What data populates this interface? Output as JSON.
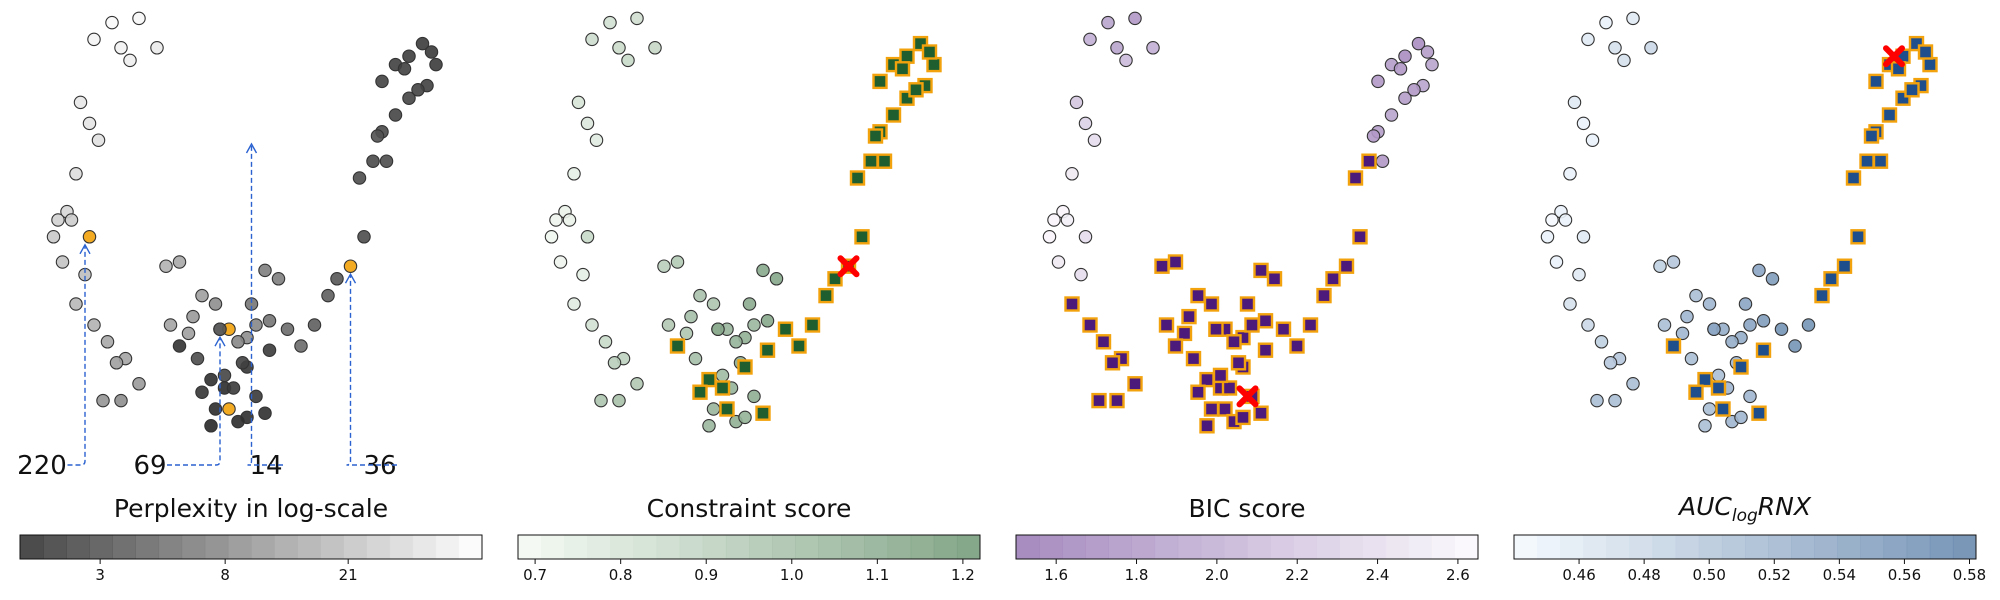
{
  "chart_data": [
    {
      "type": "scatter",
      "title": "Perplexity in log-scale",
      "colorscale": "Greys (dark = low, light = high)",
      "colorbar": {
        "min": 1.6,
        "max": 60,
        "scale": "log",
        "ticks": [
          3,
          8,
          21
        ],
        "tick_labels": [
          "3",
          "8",
          "21"
        ]
      },
      "highlight_color": "#f2a20c",
      "annotations": [
        {
          "label": "220",
          "target": {
            "x": 1.4,
            "y": 4.6
          }
        },
        {
          "label": "69",
          "target": {
            "x": 4.4,
            "y": 2.4
          }
        },
        {
          "label": "14",
          "target": {
            "x": 5.1,
            "y": 7.0
          }
        },
        {
          "label": "36",
          "target": {
            "x": 7.3,
            "y": 3.9
          }
        }
      ],
      "x": [
        2.0,
        2.6,
        1.6,
        2.2,
        2.4,
        3.0,
        1.3,
        1.5,
        1.7,
        1.2,
        1.0,
        0.8,
        1.1,
        0.7,
        0.9,
        1.4,
        1.2,
        1.6,
        1.9,
        2.3,
        2.1,
        2.6,
        1.8,
        2.2,
        1.5,
        3.2,
        3.5,
        4.0,
        4.4,
        3.8,
        4.3,
        3.3,
        3.7,
        4.6,
        5.0,
        4.8,
        5.2,
        5.4,
        5.7,
        5.1,
        5.5,
        5.9,
        6.2,
        6.5,
        6.8,
        7.0,
        7.3,
        7.6,
        7.5,
        7.8,
        8.0,
        8.3,
        8.0,
        8.3,
        8.6,
        8.9,
        8.5,
        8.1,
        7.9,
        8.6,
        9.0,
        9.2,
        9.1,
        8.8,
        3.5,
        4.2,
        4.5,
        4.6,
        5.0,
        5.5,
        5.4,
        4.0,
        4.2,
        4.3,
        4.8,
        5.0,
        5.2,
        4.9,
        4.7,
        4.5,
        4.4,
        3.9
      ],
      "y": [
        9.7,
        9.8,
        9.3,
        9.1,
        8.8,
        9.1,
        7.8,
        7.3,
        6.9,
        6.1,
        5.2,
        5.0,
        5.0,
        4.6,
        4.0,
        3.7,
        3.0,
        2.5,
        2.1,
        1.7,
        1.6,
        1.1,
        0.7,
        0.7,
        4.6,
        3.9,
        4.0,
        3.2,
        2.4,
        2.7,
        3.0,
        2.5,
        2.3,
        2.4,
        2.2,
        2.1,
        2.5,
        3.8,
        3.6,
        3.0,
        2.6,
        2.4,
        2.0,
        2.5,
        3.2,
        3.6,
        3.9,
        4.6,
        6.0,
        6.4,
        7.1,
        7.5,
        8.3,
        8.7,
        8.9,
        9.2,
        8.6,
        6.4,
        7.0,
        7.9,
        8.2,
        8.7,
        9.0,
        8.1,
        2.0,
        1.2,
        1.0,
        0.5,
        1.5,
        1.9,
        0.4,
        0.9,
        0.1,
        0.5,
        0.2,
        0.3,
        0.8,
        1.6,
        1.0,
        1.3,
        2.4,
        1.7
      ],
      "colorbar_values": [
        55,
        52,
        50,
        48,
        45,
        42,
        40,
        38,
        36,
        34,
        30,
        28,
        26,
        24,
        22,
        20,
        18,
        16,
        14,
        13,
        12,
        11,
        10,
        9,
        18,
        16,
        14,
        12,
        10,
        11,
        9,
        13,
        12,
        10,
        9,
        8,
        8,
        7,
        7,
        6,
        6,
        5,
        5,
        4,
        4,
        3.5,
        3.5,
        3,
        3,
        2.8,
        2.8,
        2.6,
        2.5,
        2.4,
        2.3,
        2.2,
        2.4,
        3,
        3.2,
        2.6,
        2.4,
        2.2,
        2.1,
        2.5,
        1.9,
        1.8,
        1.7,
        1.7,
        2.0,
        2.2,
        1.8,
        2.0,
        1.6,
        1.7,
        1.7,
        1.8,
        2.1,
        2.4,
        2.2,
        2.6,
        3.5,
        2.9
      ],
      "highlighted_indices": [
        24,
        33,
        46,
        67
      ]
    },
    {
      "type": "scatter",
      "title": "Constraint score",
      "colorscale": "Greens (light = low, dark = high)",
      "colorbar": {
        "min": 0.68,
        "max": 1.22,
        "ticks": [
          0.7,
          0.8,
          0.9,
          1.0,
          1.1,
          1.2
        ],
        "tick_labels": [
          "0.7",
          "0.8",
          "0.9",
          "1.0",
          "1.1",
          "1.2"
        ]
      },
      "selected_marker": "square",
      "selected_fill": "#1f5f2f",
      "selected_edge": "#f2a20c",
      "best_marker": "X",
      "best_color": "#ff0000",
      "best_point": {
        "x": 7.3,
        "y": 3.9
      },
      "x": [
        2.0,
        2.6,
        1.6,
        2.2,
        2.4,
        3.0,
        1.3,
        1.5,
        1.7,
        1.2,
        1.0,
        0.8,
        1.1,
        0.7,
        0.9,
        1.4,
        1.2,
        1.6,
        1.9,
        2.3,
        2.1,
        2.6,
        1.8,
        2.2,
        1.5,
        3.2,
        3.5,
        4.0,
        4.4,
        3.8,
        4.3,
        3.3,
        3.7,
        4.6,
        5.0,
        4.8,
        5.2,
        5.4,
        5.7,
        5.1,
        5.5,
        5.9,
        6.2,
        6.5,
        6.8,
        7.0,
        7.3,
        7.6,
        7.5,
        7.8,
        8.0,
        8.3,
        8.0,
        8.3,
        8.6,
        8.9,
        8.5,
        8.1,
        7.9,
        8.6,
        9.0,
        9.2,
        9.1,
        8.8,
        3.5,
        4.2,
        4.5,
        4.6,
        5.0,
        5.5,
        5.4,
        4.0,
        4.2,
        4.3,
        4.8,
        5.0,
        5.2,
        4.9,
        4.7,
        4.5,
        4.4,
        3.9
      ],
      "y": [
        9.7,
        9.8,
        9.3,
        9.1,
        8.8,
        9.1,
        7.8,
        7.3,
        6.9,
        6.1,
        5.2,
        5.0,
        5.0,
        4.6,
        4.0,
        3.7,
        3.0,
        2.5,
        2.1,
        1.7,
        1.6,
        1.1,
        0.7,
        0.7,
        4.6,
        3.9,
        4.0,
        3.2,
        2.4,
        2.7,
        3.0,
        2.5,
        2.3,
        2.4,
        2.2,
        2.1,
        2.5,
        3.8,
        3.6,
        3.0,
        2.6,
        2.4,
        2.0,
        2.5,
        3.2,
        3.6,
        3.9,
        4.6,
        6.0,
        6.4,
        7.1,
        7.5,
        8.3,
        8.7,
        8.9,
        9.2,
        8.6,
        6.4,
        7.0,
        7.9,
        8.2,
        8.7,
        9.0,
        8.1,
        2.0,
        1.2,
        1.0,
        0.5,
        1.5,
        1.9,
        0.4,
        0.9,
        0.1,
        0.5,
        0.2,
        0.3,
        0.8,
        1.6,
        1.0,
        1.3,
        2.4,
        1.7
      ],
      "colorbar_values": [
        0.82,
        0.83,
        0.84,
        0.85,
        0.86,
        0.87,
        0.8,
        0.78,
        0.76,
        0.74,
        0.72,
        0.71,
        0.72,
        0.7,
        0.71,
        0.74,
        0.76,
        0.82,
        0.86,
        0.9,
        0.92,
        0.95,
        0.97,
        0.99,
        0.86,
        0.92,
        0.94,
        0.98,
        1.02,
        1.0,
        0.97,
        0.95,
        0.96,
        1.05,
        1.08,
        1.06,
        1.04,
        1.12,
        1.13,
        1.1,
        1.12,
        1.15,
        1.16,
        1.17,
        1.18,
        1.19,
        1.2,
        1.18,
        1.17,
        1.16,
        1.18,
        1.17,
        1.16,
        1.15,
        1.15,
        1.14,
        1.16,
        1.18,
        1.19,
        1.17,
        1.15,
        1.14,
        1.14,
        1.16,
        0.99,
        1.06,
        1.08,
        1.12,
        1.1,
        1.12,
        1.13,
        1.02,
        1.04,
        1.05,
        1.08,
        1.07,
        1.09,
        1.1,
        1.06,
        1.02,
        1.11,
        1.0
      ],
      "selected_indices": [
        41,
        42,
        43,
        44,
        45,
        46,
        47,
        48,
        49,
        50,
        51,
        52,
        53,
        54,
        55,
        56,
        57,
        58,
        59,
        60,
        61,
        62,
        63,
        64,
        65,
        66,
        67,
        68,
        69,
        70,
        71
      ]
    },
    {
      "type": "scatter",
      "title": "BIC score",
      "colorscale": "Purples reversed (dark = low, light = high)",
      "colorbar": {
        "min": 1.5,
        "max": 2.65,
        "ticks": [
          1.6,
          1.8,
          2.0,
          2.2,
          2.4,
          2.6
        ],
        "tick_labels": [
          "1.6",
          "1.8",
          "2.0",
          "2.2",
          "2.4",
          "2.6"
        ]
      },
      "selected_marker": "square",
      "selected_fill": "#4b1a7a",
      "selected_edge": "#f2a20c",
      "best_marker": "X",
      "best_color": "#ff0000",
      "best_point": {
        "x": 5.1,
        "y": 0.8
      },
      "x": [
        2.0,
        2.6,
        1.6,
        2.2,
        2.4,
        3.0,
        1.3,
        1.5,
        1.7,
        1.2,
        1.0,
        0.8,
        1.1,
        0.7,
        0.9,
        1.4,
        1.2,
        1.6,
        1.9,
        2.3,
        2.1,
        2.6,
        1.8,
        2.2,
        1.5,
        3.2,
        3.5,
        4.0,
        4.4,
        3.8,
        4.3,
        3.3,
        3.7,
        4.6,
        5.0,
        4.8,
        5.2,
        5.4,
        5.7,
        5.1,
        5.5,
        5.9,
        6.2,
        6.5,
        6.8,
        7.0,
        7.3,
        7.6,
        7.5,
        7.8,
        8.0,
        8.3,
        8.0,
        8.3,
        8.6,
        8.9,
        8.5,
        8.1,
        7.9,
        8.6,
        9.0,
        9.2,
        9.1,
        8.8,
        3.5,
        4.2,
        4.5,
        4.6,
        5.0,
        5.5,
        5.4,
        4.0,
        4.2,
        4.3,
        4.8,
        5.0,
        5.2,
        4.9,
        4.7,
        4.5,
        4.4,
        3.9
      ],
      "y": [
        9.7,
        9.8,
        9.3,
        9.1,
        8.8,
        9.1,
        7.8,
        7.3,
        6.9,
        6.1,
        5.2,
        5.0,
        5.0,
        4.6,
        4.0,
        3.7,
        3.0,
        2.5,
        2.1,
        1.7,
        1.6,
        1.1,
        0.7,
        0.7,
        4.6,
        3.9,
        4.0,
        3.2,
        2.4,
        2.7,
        3.0,
        2.5,
        2.3,
        2.4,
        2.2,
        2.1,
        2.5,
        3.8,
        3.6,
        3.0,
        2.6,
        2.4,
        2.0,
        2.5,
        3.2,
        3.6,
        3.9,
        4.6,
        6.0,
        6.4,
        7.1,
        7.5,
        8.3,
        8.7,
        8.9,
        9.2,
        8.6,
        6.4,
        7.0,
        7.9,
        8.2,
        8.7,
        9.0,
        8.1,
        2.0,
        1.2,
        1.0,
        0.5,
        1.5,
        1.9,
        0.4,
        0.9,
        0.1,
        0.5,
        0.2,
        0.3,
        0.8,
        1.6,
        1.0,
        1.3,
        2.4,
        1.7
      ],
      "colorbar_values": [
        1.9,
        1.8,
        2.0,
        1.9,
        2.1,
        2.0,
        2.2,
        2.3,
        2.4,
        2.5,
        2.6,
        2.6,
        2.55,
        2.6,
        2.5,
        2.4,
        2.3,
        2.1,
        1.9,
        1.7,
        1.8,
        1.7,
        1.6,
        1.7,
        2.4,
        2.1,
        2.0,
        1.9,
        1.8,
        1.9,
        1.8,
        1.9,
        1.8,
        1.7,
        1.6,
        1.7,
        1.6,
        1.6,
        1.6,
        1.55,
        1.55,
        1.55,
        1.6,
        1.6,
        1.6,
        1.65,
        1.7,
        1.7,
        1.75,
        1.8,
        1.85,
        1.9,
        1.8,
        1.85,
        1.7,
        1.7,
        1.8,
        1.8,
        1.8,
        1.85,
        1.9,
        1.9,
        1.85,
        1.8,
        1.55,
        1.55,
        1.55,
        1.55,
        1.55,
        1.55,
        1.55,
        1.55,
        1.55,
        1.55,
        1.55,
        1.55,
        1.55,
        1.55,
        1.55,
        1.55,
        1.55,
        1.55
      ],
      "selected_indices": [
        16,
        17,
        18,
        19,
        20,
        21,
        22,
        23,
        25,
        26,
        27,
        28,
        29,
        30,
        31,
        32,
        33,
        34,
        35,
        36,
        37,
        38,
        39,
        40,
        41,
        42,
        43,
        44,
        45,
        46,
        47,
        48,
        49,
        64,
        65,
        66,
        67,
        68,
        69,
        70,
        71,
        72,
        73,
        74,
        75,
        76,
        77,
        78,
        79,
        80,
        81
      ]
    },
    {
      "type": "scatter",
      "title": "AUC_logRNX",
      "title_parts": {
        "base": "AUC",
        "sub": "log",
        "suffix": "RNX"
      },
      "colorscale": "Blues (light = low, dark = high)",
      "colorbar": {
        "min": 0.44,
        "max": 0.582,
        "ticks": [
          0.46,
          0.48,
          0.5,
          0.52,
          0.54,
          0.56,
          0.58
        ],
        "tick_labels": [
          "0.46",
          "0.48",
          "0.50",
          "0.52",
          "0.54",
          "0.56",
          "0.58"
        ]
      },
      "selected_marker": "square",
      "selected_fill": "#1f4e8c",
      "selected_edge": "#f2a20c",
      "best_marker": "X",
      "best_color": "#ff0000",
      "best_point": {
        "x": 8.4,
        "y": 8.9
      },
      "x": [
        2.0,
        2.6,
        1.6,
        2.2,
        2.4,
        3.0,
        1.3,
        1.5,
        1.7,
        1.2,
        1.0,
        0.8,
        1.1,
        0.7,
        0.9,
        1.4,
        1.2,
        1.6,
        1.9,
        2.3,
        2.1,
        2.6,
        1.8,
        2.2,
        1.5,
        3.2,
        3.5,
        4.0,
        4.4,
        3.8,
        4.3,
        3.3,
        3.7,
        4.6,
        5.0,
        4.8,
        5.2,
        5.4,
        5.7,
        5.1,
        5.5,
        5.9,
        6.2,
        6.5,
        6.8,
        7.0,
        7.3,
        7.6,
        7.5,
        7.8,
        8.0,
        8.3,
        8.0,
        8.3,
        8.6,
        8.9,
        8.5,
        8.1,
        7.9,
        8.6,
        9.0,
        9.2,
        9.1,
        8.8,
        3.5,
        4.2,
        4.5,
        4.6,
        5.0,
        5.5,
        5.4,
        4.0,
        4.2,
        4.3,
        4.8,
        5.0,
        5.2,
        4.9,
        4.7,
        4.5,
        4.4,
        3.9
      ],
      "y": [
        9.7,
        9.8,
        9.3,
        9.1,
        8.8,
        9.1,
        7.8,
        7.3,
        6.9,
        6.1,
        5.2,
        5.0,
        5.0,
        4.6,
        4.0,
        3.7,
        3.0,
        2.5,
        2.1,
        1.7,
        1.6,
        1.1,
        0.7,
        0.7,
        4.6,
        3.9,
        4.0,
        3.2,
        2.4,
        2.7,
        3.0,
        2.5,
        2.3,
        2.4,
        2.2,
        2.1,
        2.5,
        3.8,
        3.6,
        3.0,
        2.6,
        2.4,
        2.0,
        2.5,
        3.2,
        3.6,
        3.9,
        4.6,
        6.0,
        6.4,
        7.1,
        7.5,
        8.3,
        8.7,
        8.9,
        9.2,
        8.6,
        6.4,
        7.0,
        7.9,
        8.2,
        8.7,
        9.0,
        8.1,
        2.0,
        1.2,
        1.0,
        0.5,
        1.5,
        1.9,
        0.4,
        0.9,
        0.1,
        0.5,
        0.2,
        0.3,
        0.8,
        1.6,
        1.0,
        1.3,
        2.4,
        1.7
      ],
      "colorbar_values": [
        0.45,
        0.46,
        0.46,
        0.47,
        0.47,
        0.48,
        0.46,
        0.45,
        0.45,
        0.45,
        0.45,
        0.44,
        0.45,
        0.45,
        0.45,
        0.46,
        0.47,
        0.48,
        0.49,
        0.5,
        0.5,
        0.51,
        0.51,
        0.51,
        0.46,
        0.49,
        0.5,
        0.51,
        0.52,
        0.52,
        0.52,
        0.51,
        0.52,
        0.53,
        0.53,
        0.53,
        0.54,
        0.54,
        0.55,
        0.54,
        0.55,
        0.56,
        0.56,
        0.56,
        0.57,
        0.57,
        0.57,
        0.57,
        0.57,
        0.57,
        0.57,
        0.57,
        0.56,
        0.56,
        0.56,
        0.56,
        0.56,
        0.57,
        0.57,
        0.57,
        0.57,
        0.56,
        0.56,
        0.57,
        0.5,
        0.51,
        0.51,
        0.52,
        0.52,
        0.53,
        0.53,
        0.51,
        0.51,
        0.51,
        0.52,
        0.52,
        0.52,
        0.52,
        0.52,
        0.51,
        0.54,
        0.51
      ],
      "selected_indices": [
        44,
        45,
        46,
        47,
        48,
        49,
        50,
        51,
        52,
        53,
        54,
        55,
        56,
        57,
        58,
        59,
        60,
        61,
        62,
        63,
        64,
        65,
        66,
        67,
        68,
        69,
        70,
        71
      ]
    }
  ]
}
